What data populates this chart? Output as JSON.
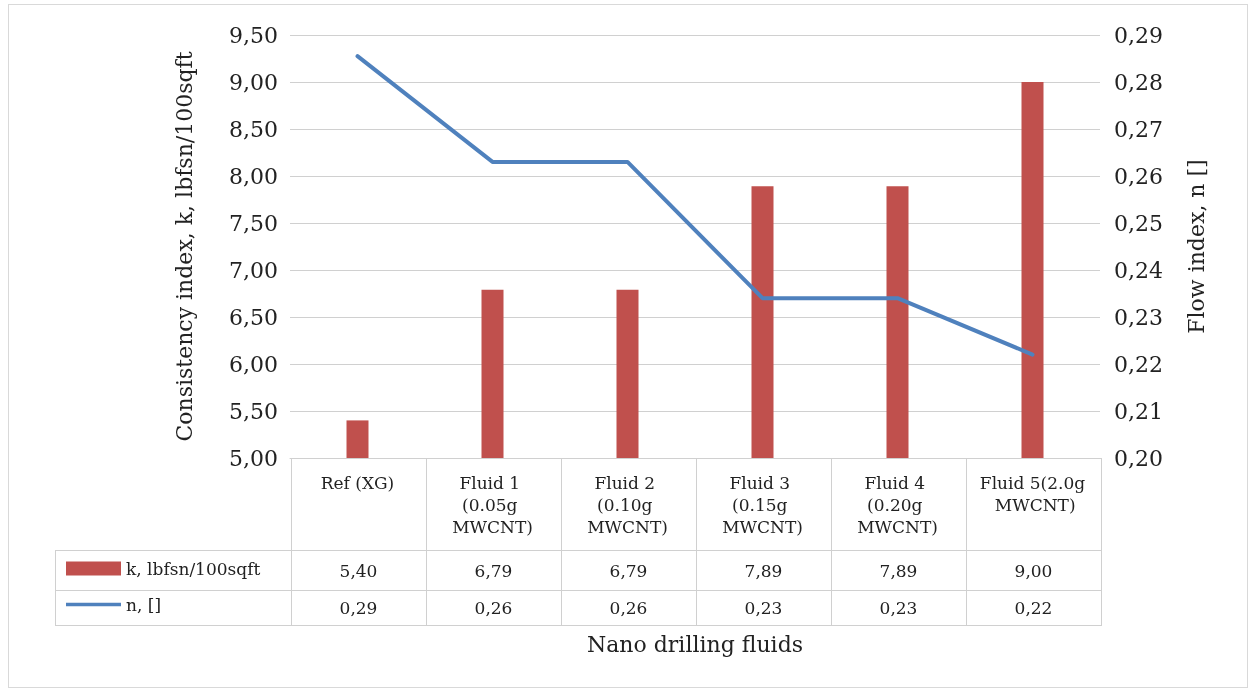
{
  "chart_data": {
    "type": "bar",
    "categories": [
      "Ref (XG)",
      "Fluid 1 (0.05g MWCNT)",
      "Fluid 2 (0.10g MWCNT)",
      "Fluid 3 (0.15g MWCNT)",
      "Fluid 4 (0.20g MWCNT)",
      "Fluid 5(2.0g MWCNT)"
    ],
    "series": [
      {
        "name": "k, lbfsn/100sqft",
        "color": "#c0504d",
        "values": [
          5.4,
          6.79,
          6.79,
          7.89,
          7.89,
          9.0
        ],
        "value_labels": [
          "5,40",
          "6,79",
          "6,79",
          "7,89",
          "7,89",
          "9,00"
        ]
      },
      {
        "name": "n, []",
        "type": "line",
        "axis": "y2",
        "color": "#4f81bd",
        "values": [
          0.2855,
          0.263,
          0.263,
          0.234,
          0.234,
          0.222
        ],
        "value_labels": [
          "0,29",
          "0,26",
          "0,26",
          "0,23",
          "0,23",
          "0,22"
        ]
      }
    ],
    "xlabel": "Nano drilling fluids",
    "ylabel": "Consistency index, k, lbfsn/100sqft",
    "y2label": "Flow index, n []",
    "ylim": [
      5,
      9.5
    ],
    "yticks": [
      {
        "value": 5,
        "label": "5,00"
      },
      {
        "value": 5.5,
        "label": "5,50"
      },
      {
        "value": 6,
        "label": "6,00"
      },
      {
        "value": 6.5,
        "label": "6,50"
      },
      {
        "value": 7,
        "label": "7,00"
      },
      {
        "value": 7.5,
        "label": "7,50"
      },
      {
        "value": 8,
        "label": "8,00"
      },
      {
        "value": 8.5,
        "label": "8,50"
      },
      {
        "value": 9,
        "label": "9,00"
      },
      {
        "value": 9.5,
        "label": "9,50"
      }
    ],
    "y2lim": [
      0.2,
      0.29
    ],
    "y2ticks": [
      {
        "value": 0.2,
        "label": "0,20"
      },
      {
        "value": 0.21,
        "label": "0,21"
      },
      {
        "value": 0.22,
        "label": "0,22"
      },
      {
        "value": 0.23,
        "label": "0,23"
      },
      {
        "value": 0.24,
        "label": "0,24"
      },
      {
        "value": 0.25,
        "label": "0,25"
      },
      {
        "value": 0.26,
        "label": "0,26"
      },
      {
        "value": 0.27,
        "label": "0,27"
      },
      {
        "value": 0.28,
        "label": "0,28"
      },
      {
        "value": 0.29,
        "label": "0,29"
      }
    ],
    "grid": "y",
    "legend": "bottom left",
    "marker": "none",
    "line_style": "solid"
  }
}
